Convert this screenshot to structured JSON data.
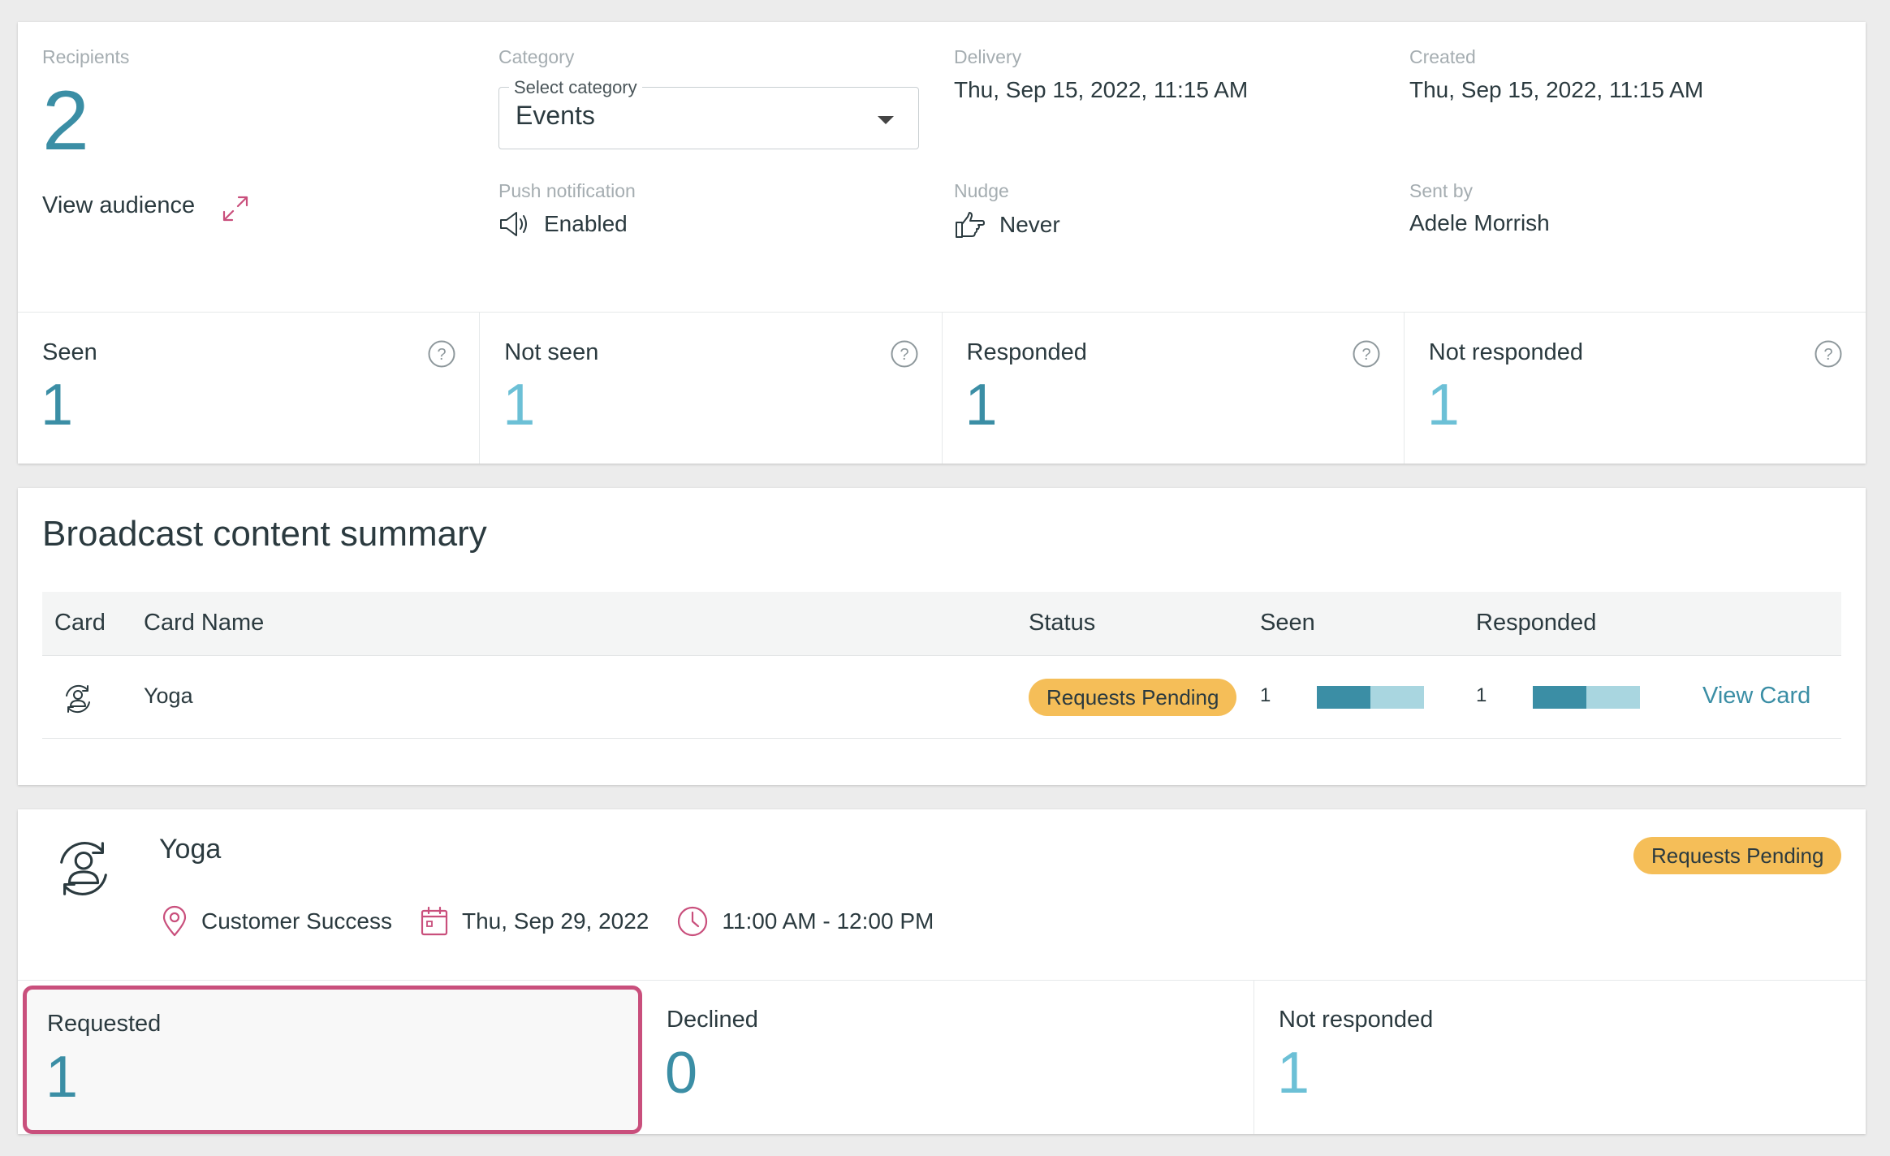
{
  "top": {
    "recipients_label": "Recipients",
    "recipients_count": "2",
    "view_audience": "View audience",
    "category_label": "Category",
    "category_select_legend": "Select category",
    "category_value": "Events",
    "delivery_label": "Delivery",
    "delivery_value": "Thu, Sep 15, 2022, 11:15 AM",
    "created_label": "Created",
    "created_value": "Thu, Sep 15, 2022, 11:15 AM",
    "push_label": "Push notification",
    "push_value": "Enabled",
    "nudge_label": "Nudge",
    "nudge_value": "Never",
    "sentby_label": "Sent by",
    "sentby_value": "Adele Morrish"
  },
  "stats": [
    {
      "label": "Seen",
      "value": "1",
      "color": "#3b8ea5"
    },
    {
      "label": "Not seen",
      "value": "1",
      "color": "#6cc0d6"
    },
    {
      "label": "Responded",
      "value": "1",
      "color": "#3b8ea5"
    },
    {
      "label": "Not responded",
      "value": "1",
      "color": "#6cc0d6"
    }
  ],
  "summary": {
    "title": "Broadcast content summary",
    "headers": {
      "card": "Card",
      "name": "Card Name",
      "status": "Status",
      "seen": "Seen",
      "responded": "Responded"
    },
    "row": {
      "name": "Yoga",
      "status": "Requests Pending",
      "seen": "1",
      "seen_fraction": 0.5,
      "responded": "1",
      "responded_fraction": 0.5,
      "action": "View Card"
    }
  },
  "card": {
    "title": "Yoga",
    "status": "Requests Pending",
    "location": "Customer Success",
    "date": "Thu, Sep 29, 2022",
    "time": "11:00 AM - 12:00 PM",
    "stats": [
      {
        "label": "Requested",
        "value": "1",
        "color": "#3b8ea5"
      },
      {
        "label": "Declined",
        "value": "0",
        "color": "#3b8ea5"
      },
      {
        "label": "Not responded",
        "value": "1",
        "color": "#6cc0d6"
      }
    ]
  },
  "colors": {
    "accent": "#3b8ea5",
    "light_accent": "#6cc0d6",
    "badge": "#f5be58",
    "pink": "#c94f7c"
  }
}
